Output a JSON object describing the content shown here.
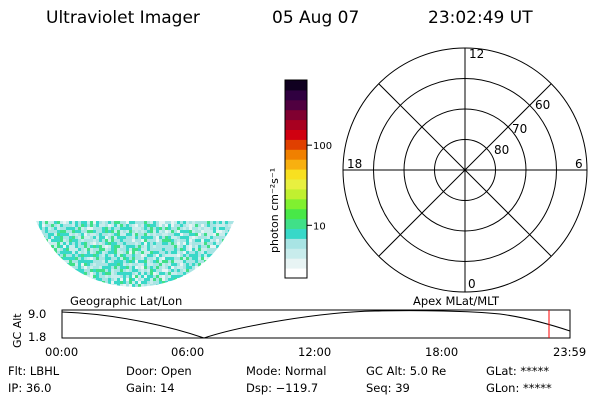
{
  "header": {
    "title": "Ultraviolet Imager",
    "date": "05 Aug 07",
    "time": "23:02:49 UT"
  },
  "colorbar": {
    "label": "photon cm⁻²s⁻¹",
    "ticks": [
      {
        "label": "100",
        "value": 100
      },
      {
        "label": "10",
        "value": 10
      }
    ],
    "colors": [
      "#ffffff",
      "#e8f4f4",
      "#c8ecec",
      "#a8e4e4",
      "#38d8c8",
      "#40e088",
      "#48e848",
      "#80f030",
      "#c0f030",
      "#e8f040",
      "#f8e020",
      "#f8b010",
      "#f08000",
      "#e04000",
      "#d00010",
      "#a80020",
      "#800030",
      "#500040",
      "#300040",
      "#100020"
    ]
  },
  "polar": {
    "mlt_labels": [
      "12",
      "18",
      "6",
      "0"
    ],
    "lat_labels": [
      "60",
      "70",
      "80"
    ],
    "caption": "Apex MLat/MLT"
  },
  "geo_panel": {
    "caption": "Geographic Lat/Lon",
    "texture_colors": [
      "#38d8c8",
      "#a8e4e4",
      "#c8ecec",
      "#e8f4f4",
      "#40e088"
    ]
  },
  "altitude_plot": {
    "ylabel": "GC Alt",
    "yticks": [
      "9.0",
      "1.8"
    ],
    "xticks": [
      "00:00",
      "06:00",
      "12:00",
      "18:00",
      "23:59"
    ],
    "curve_color": "#000000",
    "marker_color": "#ff0000"
  },
  "footer": {
    "filter": "Flt: LBHL",
    "ip": "IP: 36.0",
    "door": "Door: Open",
    "gain": "Gain: 14",
    "mode": "Mode: Normal",
    "dsp": "Dsp: −119.7",
    "gc_alt": "GC Alt: 5.0 Re",
    "seq": "Seq: 39",
    "glat": "GLat: *****",
    "glon": "GLon: *****"
  }
}
